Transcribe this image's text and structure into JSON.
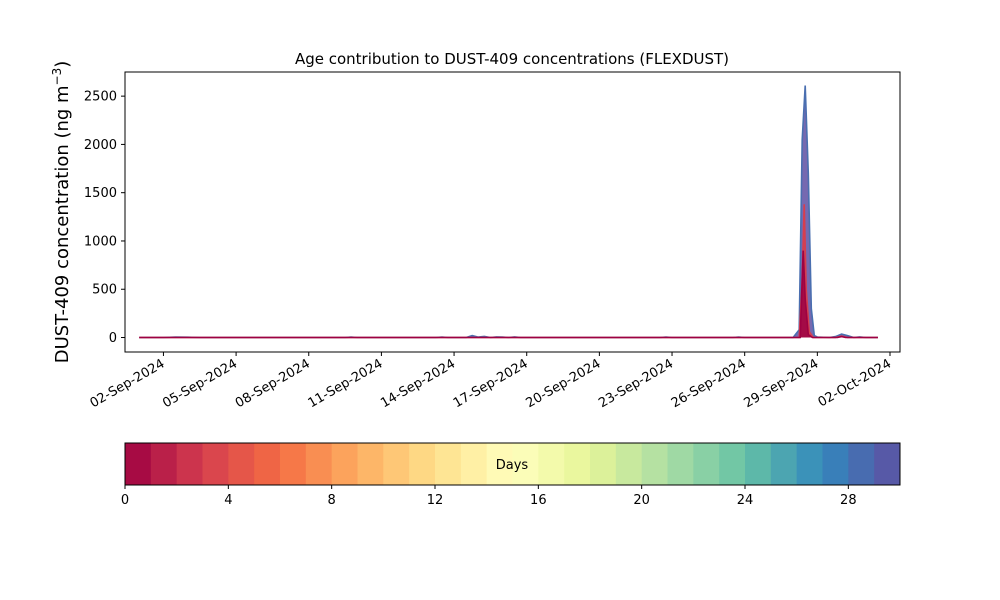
{
  "chart_data": {
    "type": "area",
    "title": "Age contribution to DUST-409 concentrations (FLEXDUST)",
    "xlabel": "",
    "ylabel": "DUST-409 concentration (ng m",
    "ylabel_superscript": "−3",
    "ylabel_close": ")",
    "x_range": [
      "2024-08-31",
      "2024-10-02"
    ],
    "ylim": [
      -150,
      2750
    ],
    "y_ticks": [
      0,
      500,
      1000,
      1500,
      2000,
      2500
    ],
    "x_ticks": [
      {
        "date": "2024-09-02",
        "label": "02-Sep-2024"
      },
      {
        "date": "2024-09-05",
        "label": "05-Sep-2024"
      },
      {
        "date": "2024-09-08",
        "label": "08-Sep-2024"
      },
      {
        "date": "2024-09-11",
        "label": "11-Sep-2024"
      },
      {
        "date": "2024-09-14",
        "label": "14-Sep-2024"
      },
      {
        "date": "2024-09-17",
        "label": "17-Sep-2024"
      },
      {
        "date": "2024-09-20",
        "label": "20-Sep-2024"
      },
      {
        "date": "2024-09-23",
        "label": "23-Sep-2024"
      },
      {
        "date": "2024-09-26",
        "label": "26-Sep-2024"
      },
      {
        "date": "2024-09-29",
        "label": "29-Sep-2024"
      },
      {
        "date": "2024-10-02",
        "label": "02-Oct-2024"
      }
    ],
    "grid": false,
    "series": [
      {
        "color": "#5e4fa2",
        "points": [
          [
            "2024-09-01T00:00",
            0
          ],
          [
            "2024-09-02T00:00",
            0
          ],
          [
            "2024-09-02T12:00",
            4
          ],
          [
            "2024-09-03T00:00",
            3
          ],
          [
            "2024-09-03T12:00",
            0
          ],
          [
            "2024-09-08T00:00",
            0
          ],
          [
            "2024-09-09T12:00",
            0
          ],
          [
            "2024-09-09T18:00",
            4
          ],
          [
            "2024-09-10T00:00",
            0
          ],
          [
            "2024-09-13T06:00",
            0
          ],
          [
            "2024-09-13T12:00",
            5
          ],
          [
            "2024-09-13T18:00",
            0
          ],
          [
            "2024-09-14T12:00",
            0
          ],
          [
            "2024-09-14T18:00",
            20
          ],
          [
            "2024-09-15T00:00",
            4
          ],
          [
            "2024-09-15T06:00",
            12
          ],
          [
            "2024-09-15T12:00",
            0
          ],
          [
            "2024-09-15T18:00",
            6
          ],
          [
            "2024-09-16T00:00",
            5
          ],
          [
            "2024-09-16T06:00",
            0
          ],
          [
            "2024-09-16T12:00",
            6
          ],
          [
            "2024-09-16T18:00",
            0
          ],
          [
            "2024-09-21T00:00",
            0
          ],
          [
            "2024-09-22T12:00",
            0
          ],
          [
            "2024-09-22T18:00",
            5
          ],
          [
            "2024-09-23T00:00",
            0
          ],
          [
            "2024-09-25T12:00",
            0
          ],
          [
            "2024-09-25T18:00",
            5
          ],
          [
            "2024-09-26T00:00",
            0
          ],
          [
            "2024-09-28T00:00",
            0
          ],
          [
            "2024-09-28T06:00",
            80
          ],
          [
            "2024-09-28T09:00",
            2050
          ],
          [
            "2024-09-28T12:00",
            2610
          ],
          [
            "2024-09-28T15:00",
            1700
          ],
          [
            "2024-09-28T18:00",
            300
          ],
          [
            "2024-09-28T21:00",
            20
          ],
          [
            "2024-09-29T00:00",
            5
          ],
          [
            "2024-09-29T12:00",
            0
          ],
          [
            "2024-09-29T18:00",
            10
          ],
          [
            "2024-09-30T00:00",
            35
          ],
          [
            "2024-09-30T06:00",
            20
          ],
          [
            "2024-09-30T12:00",
            0
          ],
          [
            "2024-09-30T18:00",
            6
          ],
          [
            "2024-10-01T00:00",
            0
          ],
          [
            "2024-10-01T12:00",
            0
          ]
        ]
      },
      {
        "color": "#d53e4f",
        "points": [
          [
            "2024-09-01T00:00",
            0
          ],
          [
            "2024-09-28T06:00",
            0
          ],
          [
            "2024-09-28T09:00",
            600
          ],
          [
            "2024-09-28T11:00",
            1380
          ],
          [
            "2024-09-28T13:00",
            500
          ],
          [
            "2024-09-28T16:00",
            60
          ],
          [
            "2024-09-28T20:00",
            0
          ],
          [
            "2024-09-29T18:00",
            0
          ],
          [
            "2024-09-30T00:00",
            15
          ],
          [
            "2024-09-30T06:00",
            0
          ],
          [
            "2024-10-01T12:00",
            0
          ]
        ]
      },
      {
        "color": "#9e0142",
        "points": [
          [
            "2024-09-01T00:00",
            0
          ],
          [
            "2024-09-28T07:00",
            0
          ],
          [
            "2024-09-28T10:00",
            900
          ],
          [
            "2024-09-28T12:00",
            400
          ],
          [
            "2024-09-28T15:00",
            30
          ],
          [
            "2024-09-28T19:00",
            0
          ],
          [
            "2024-09-29T20:00",
            0
          ],
          [
            "2024-09-30T00:00",
            10
          ],
          [
            "2024-09-30T04:00",
            0
          ],
          [
            "2024-10-01T12:00",
            0
          ]
        ]
      }
    ],
    "colorbar": {
      "label": "Days",
      "min": 0,
      "max": 30,
      "ticks": [
        0,
        4,
        8,
        12,
        16,
        20,
        24,
        28
      ],
      "colormap": "Spectral",
      "segments": 30
    }
  }
}
